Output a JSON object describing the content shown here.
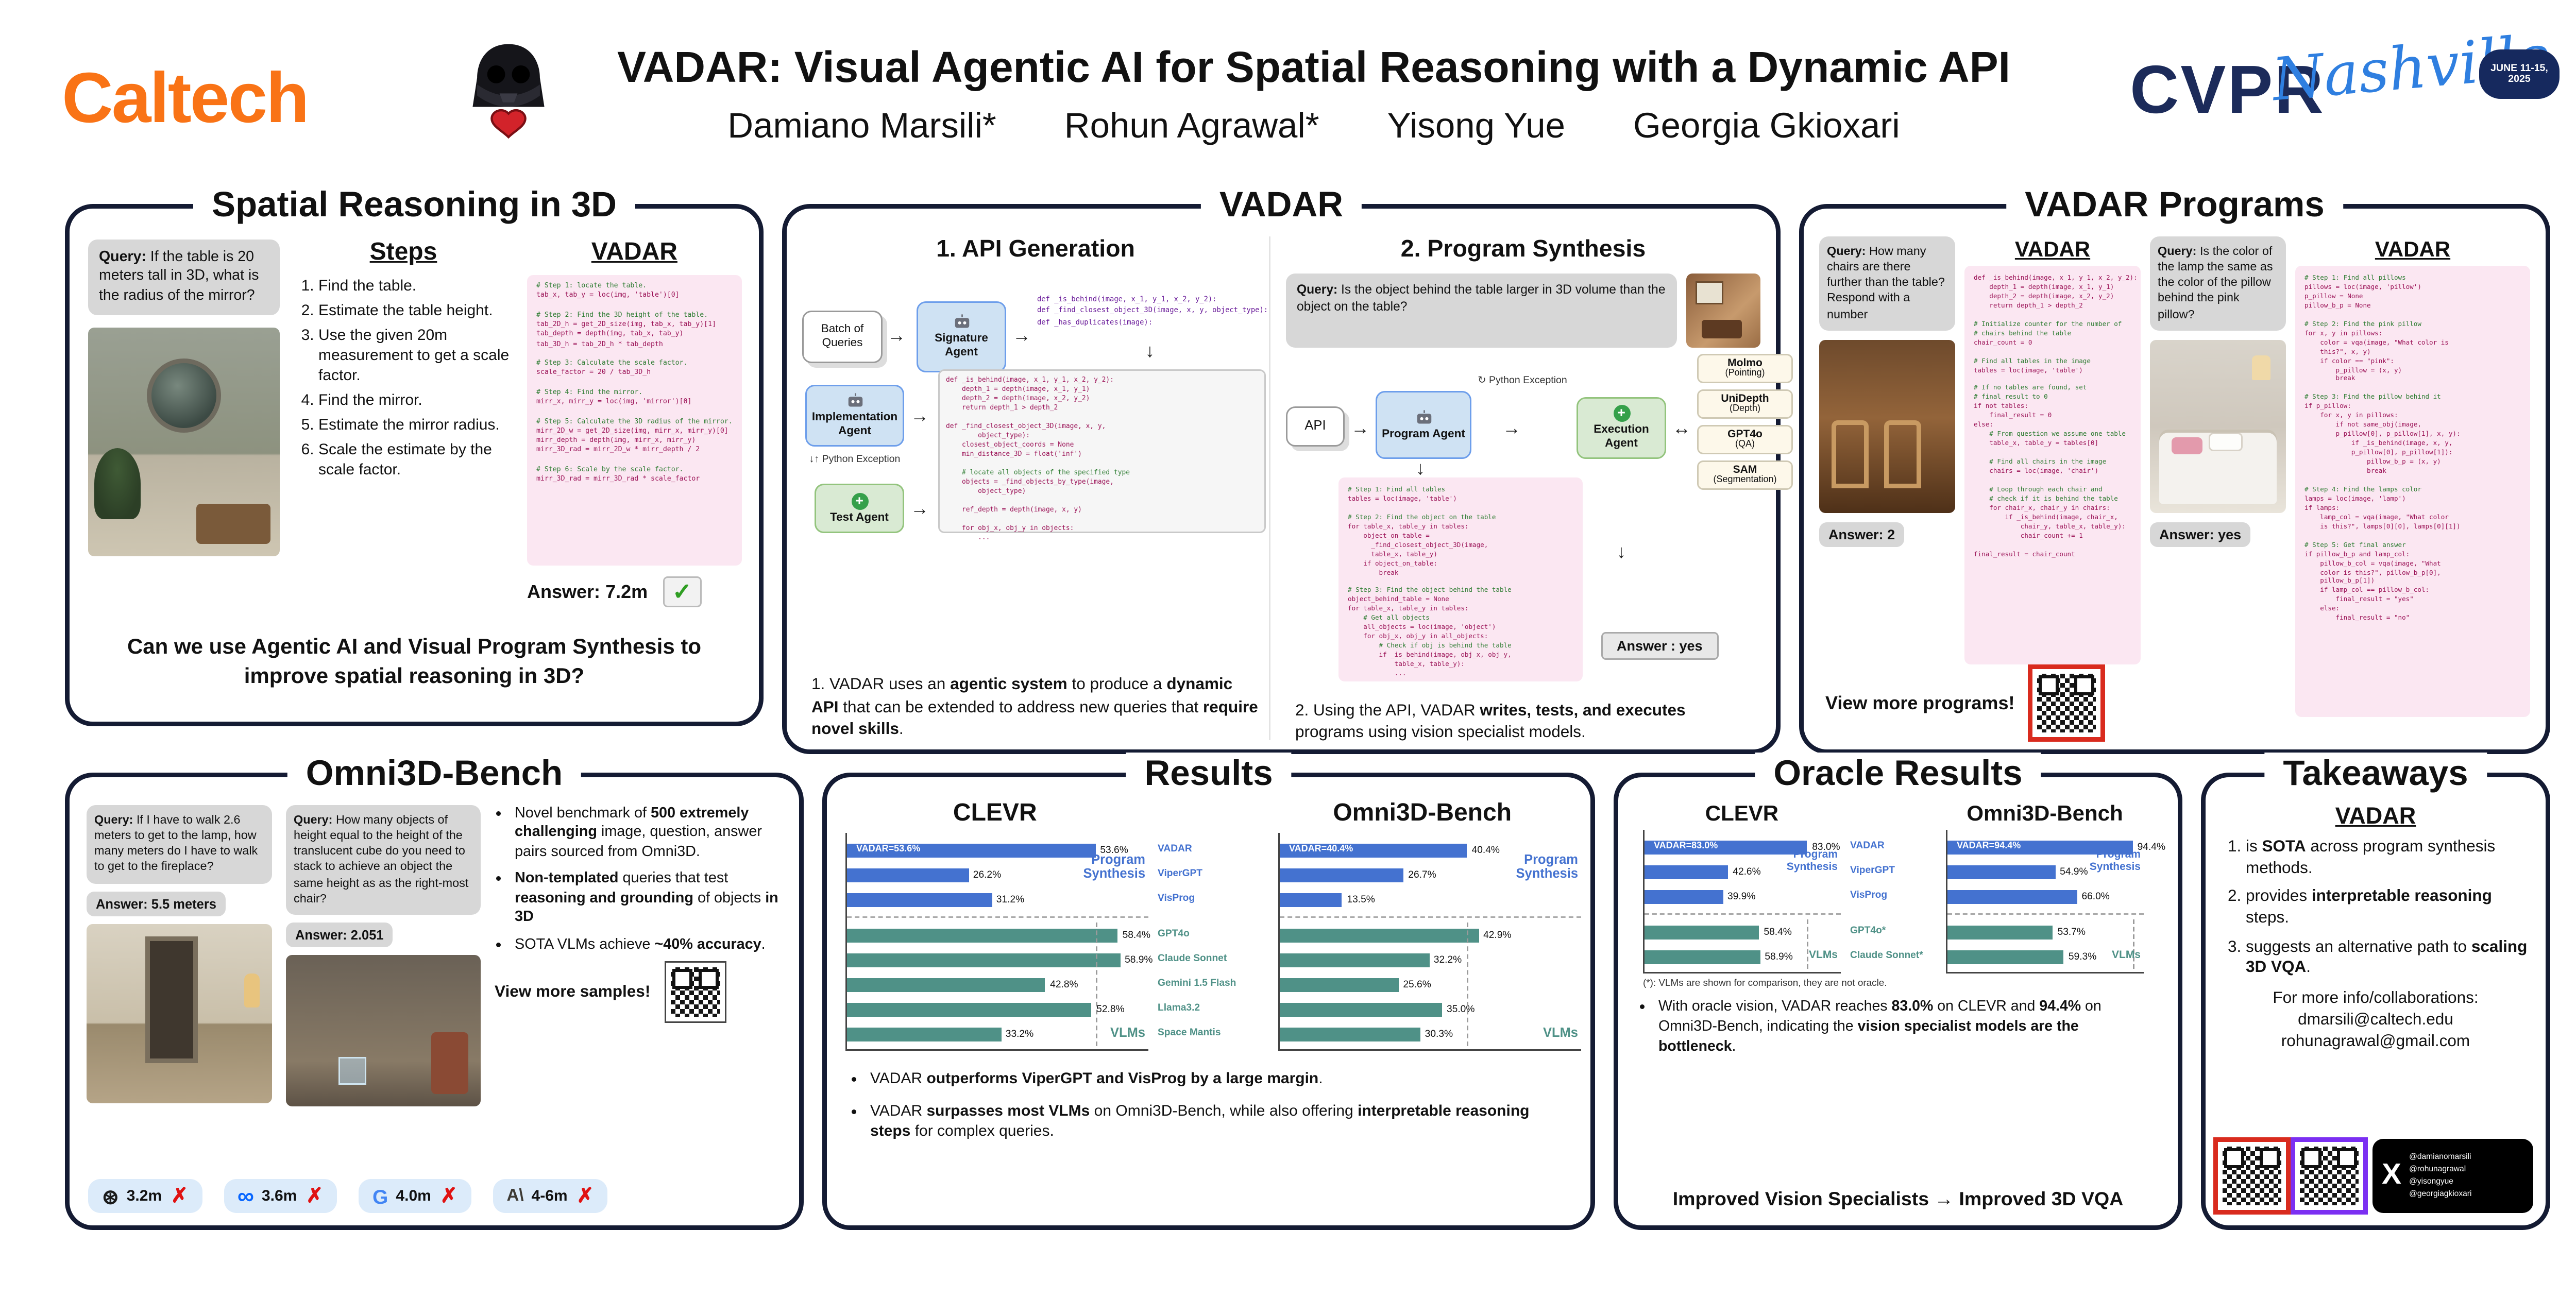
{
  "colors": {
    "caltech_orange": "#F97316",
    "cvpr_navy": "#1C2B5A",
    "cvpr_blue": "#2F7FE0",
    "program_synthesis_blue": "#4472D0",
    "vlm_teal": "#4F9187"
  },
  "icons": {
    "check": "✓",
    "cross": "✗",
    "arrow_right": "→",
    "arrow_down": "↓",
    "arrow_left_right": "↔",
    "arrow_up_down": "↓↑",
    "loop": "↻",
    "plus": "+",
    "x_logo": "X"
  },
  "header": {
    "logo": "Caltech",
    "title": "VADAR: Visual Agentic AI for Spatial Reasoning with a Dynamic API",
    "authors": [
      "Damiano Marsili*",
      "Rohun Agrawal*",
      "Yisong Yue",
      "Georgia Gkioxari"
    ],
    "conference": {
      "name": "CVPR",
      "city": "Nashville",
      "dates": "JUNE 11-15, 2025"
    }
  },
  "panel_spatial": {
    "title": "Spatial Reasoning in 3D",
    "query_label": "Query:",
    "query_text": "If the table is 20 meters tall in 3D, what is the radius of the mirror?",
    "steps_title": "Steps",
    "steps": [
      "Find the table.",
      "Estimate the table height.",
      "Use the given 20m measurement to get a scale factor.",
      "Find the mirror.",
      "Estimate the mirror radius.",
      "Scale the estimate by the scale factor."
    ],
    "vadar_title": "VADAR",
    "code": "# Step 1: locate the table.\ntab_x, tab_y = loc(img, 'table')[0]\n\n# Step 2: Find the 3D height of the table.\ntab_2D_h = get_2D_size(img, tab_x, tab_y)[1]\ntab_depth = depth(img, tab_x, tab_y)\ntab_3D_h = tab_2D_h * tab_depth\n\n# Step 3: Calculate the scale factor.\nscale_factor = 20 / tab_3D_h\n\n# Step 4: Find the mirror.\nmirr_x, mirr_y = loc(img, 'mirror')[0]\n\n# Step 5: Calculate the 3D radius of the mirror.\nmirr_2D_w = get_2D_size(img, mirr_x, mirr_y)[0]\nmirr_depth = depth(img, mirr_x, mirr_y)\nmirr_3D_rad = mirr_2D_w * mirr_depth / 2\n\n# Step 6: Scale by the scale factor.\nmirr_3D_rad = mirr_3D_rad * scale_factor",
    "answer_label": "Answer:",
    "answer": "7.2m",
    "question": "Can we use Agentic AI and Visual Program Synthesis to improve spatial reasoning in 3D?"
  },
  "panel_vadar": {
    "title": "VADAR",
    "api_generation": {
      "heading": "1. API Generation",
      "batch_label": "Batch of Queries",
      "signature_agent": "Signature Agent",
      "implementation_agent": "Implementation Agent",
      "test_agent": "Test Agent",
      "python_exception": "Python Exception",
      "signatures_code": "def _is_behind(image, x_1, y_1, x_2, y_2):\ndef _find_closest_object_3D(image, x, y, object_type):\ndef _has_duplicates(image):",
      "implementation_code": "def _is_behind(image, x_1, y_1, x_2, y_2):\n    depth_1 = depth(image, x_1, y_1)\n    depth_2 = depth(image, x_2, y_2)\n    return depth_1 > depth_2\n\ndef _find_closest_object_3D(image, x, y,\n        object_type):\n    closest_object_coords = None\n    min_distance_3D = float('inf')\n\n    # locate all objects of the specified type\n    objects = _find_objects_by_type(image,\n        object_type)\n\n    ref_depth = depth(image, x, y)\n\n    for obj_x, obj_y in objects:\n        ..."
    },
    "caption_1": [
      [
        "1. VADAR uses an ",
        0
      ],
      [
        "agentic system",
        1
      ],
      [
        " to produce a ",
        0
      ],
      [
        "dynamic API",
        1
      ],
      [
        " that can be extended to address new queries that ",
        0
      ],
      [
        "require novel skills",
        1
      ],
      [
        ".",
        0
      ]
    ],
    "program_synthesis": {
      "heading": "2. Program Synthesis",
      "query_label": "Query:",
      "query_text": "Is the object behind the table larger in 3D volume than the object on the table?",
      "api_label": "API",
      "program_agent": "Program Agent",
      "execution_agent": "Execution Agent",
      "python_exception": "Python Exception",
      "specialists": [
        {
          "name": "Molmo",
          "sub": "(Pointing)"
        },
        {
          "name": "UniDepth",
          "sub": "(Depth)"
        },
        {
          "name": "GPT4o",
          "sub": "(QA)"
        },
        {
          "name": "SAM",
          "sub": "(Segmentation)"
        }
      ],
      "program_code": "# Step 1: Find all tables\ntables = loc(image, 'table')\n\n# Step 2: Find the object on the table\nfor table_x, table_y in tables:\n    object_on_table =\n      _find_closest_object_3D(image,\n      table_x, table_y)\n    if object_on_table:\n        break\n\n# Step 3: Find the object behind the table\nobject_behind_table = None\nfor table_x, table_y in tables:\n    # Get all objects\n    all_objects = loc(image, 'object')\n    for obj_x, obj_y in all_objects:\n        # Check if obj is behind the table\n        if _is_behind(image, obj_x, obj_y,\n            table_x, table_y):\n            ...",
      "answer": "Answer : yes"
    },
    "caption_2": [
      [
        "2. Using the API, VADAR ",
        0
      ],
      [
        "writes, tests, and executes",
        1
      ],
      [
        " programs using vision specialist models.",
        0
      ]
    ]
  },
  "panel_programs": {
    "title": "VADAR Programs",
    "example_1": {
      "query_label": "Query:",
      "query_text": "How many chairs are there further than the table? Respond with a number",
      "answer_label": "Answer:",
      "answer": "2",
      "vadar_label": "VADAR",
      "code": "def _is_behind(image, x_1, y_1, x_2, y_2):\n    depth_1 = depth(image, x_1, y_1)\n    depth_2 = depth(image, x_2, y_2)\n    return depth_1 > depth_2\n\n# Initialize counter for the number of\n# chairs behind the table\nchair_count = 0\n\n# Find all tables in the image\ntables = loc(image, 'table')\n\n# If no tables are found, set\n# final_result to 0\nif not tables:\n    final_result = 0\nelse:\n    # From question we assume one table\n    table_x, table_y = tables[0]\n\n    # Find all chairs in the image\n    chairs = loc(image, 'chair')\n\n    # Loop through each chair and\n    # check if it is behind the table\n    for chair_x, chair_y in chairs:\n        if _is_behind(image, chair_x,\n            chair_y, table_x, table_y):\n            chair_count += 1\n\nfinal_result = chair_count"
    },
    "example_2": {
      "query_label": "Query:",
      "query_text": "Is the color of the lamp the same as the color of the pillow behind the pink pillow?",
      "answer_label": "Answer:",
      "answer": "yes",
      "vadar_label": "VADAR",
      "code": "# Step 1: Find all pillows\npillows = loc(image, 'pillow')\np_pillow = None\npillow_b_p = None\n\n# Step 2: Find the pink pillow\nfor x, y in pillows:\n    color = vqa(image, \"What color is\n    this?\", x, y)\n    if color == \"pink\":\n        p_pillow = (x, y)\n        break\n\n# Step 3: Find the pillow behind it\nif p_pillow:\n    for x, y in pillows:\n        if not same_obj(image,\n        p_pillow[0], p_pillow[1], x, y):\n            if _is_behind(image, x, y,\n            p_pillow[0], p_pillow[1]):\n                pillow_b_p = (x, y)\n                break\n\n# Step 4: Find the lamps color\nlamps = loc(image, 'lamp')\nif lamps:\n    lamp_col = vqa(image, \"What color\n    is this?\", lamps[0][0], lamps[0][1])\n\n# Step 5: Get final answer\nif pillow_b_p and lamp_col:\n    pillow_b_col = vqa(image, \"What\n    color is this?\", pillow_b_p[0],\n    pillow_b_p[1])\n    if lamp_col == pillow_b_col:\n        final_result = \"yes\"\n    else:\n        final_result = \"no\""
    },
    "view_more": "View more programs!"
  },
  "panel_omni": {
    "title": "Omni3D-Bench",
    "example_1": {
      "query_label": "Query:",
      "query_text": "If I have to walk 2.6 meters to get to the lamp, how many meters do I have to walk to get to the fireplace?",
      "answer_label": "Answer:",
      "answer": "5.5 meters"
    },
    "example_2": {
      "query_label": "Query:",
      "query_text": "How many objects of height equal to the height of the translucent cube do you need to stack to achieve an object the same height as as the right-most chair?",
      "answer_label": "Answer:",
      "answer": "2.051"
    },
    "bullets": [
      [
        [
          "Novel benchmark of ",
          0
        ],
        [
          "500 extremely challenging",
          1
        ],
        [
          " image, question, answer pairs sourced from Omni3D.",
          0
        ]
      ],
      [
        [
          "Non-templated",
          1
        ],
        [
          " queries that test ",
          0
        ],
        [
          "reasoning and grounding",
          1
        ],
        [
          " of objects ",
          0
        ],
        [
          "in 3D",
          1
        ]
      ],
      [
        [
          "SOTA VLMs achieve ",
          0
        ],
        [
          "~40% accuracy",
          1
        ],
        [
          ".",
          0
        ]
      ]
    ],
    "view_more": "View more samples!",
    "model_estimates": [
      {
        "model": "OpenAI",
        "logo": "⊛",
        "value": "3.2m"
      },
      {
        "model": "Meta",
        "logo": "∞",
        "value": "3.6m"
      },
      {
        "model": "Google",
        "logo": "G",
        "value": "4.0m"
      },
      {
        "model": "Anthropic",
        "logo": "A\\",
        "value": "4-6m"
      }
    ]
  },
  "panel_results": {
    "title": "Results",
    "bullets": [
      [
        [
          "VADAR ",
          0
        ],
        [
          "outperforms ViperGPT and VisProg by a large margin",
          1
        ],
        [
          ".",
          0
        ]
      ],
      [
        [
          "VADAR ",
          0
        ],
        [
          "surpasses most VLMs",
          1
        ],
        [
          " on Omni3D-Bench, while also offering ",
          0
        ],
        [
          "interpretable reasoning steps",
          1
        ],
        [
          " for complex queries.",
          0
        ]
      ]
    ]
  },
  "panel_oracle": {
    "title": "Oracle Results",
    "footnote": "(*): VLMs are shown for comparison, they are not oracle.",
    "bullet": [
      [
        [
          "With oracle vision, VADAR reaches ",
          0
        ],
        [
          "83.0%",
          1
        ],
        [
          " on CLEVR and ",
          0
        ],
        [
          "94.4%",
          1
        ],
        [
          " on Omni3D-Bench, indicating the ",
          0
        ],
        [
          "vision specialist models are the bottleneck",
          1
        ],
        [
          ".",
          0
        ]
      ]
    ],
    "conclusion": "Improved Vision Specialists → Improved 3D VQA"
  },
  "panel_takeaways": {
    "title": "Takeaways",
    "brand": "VADAR",
    "items": [
      [
        [
          "is ",
          0
        ],
        [
          "SOTA",
          1
        ],
        [
          " across program synthesis methods.",
          0
        ]
      ],
      [
        [
          "provides ",
          0
        ],
        [
          "interpretable reasoning",
          1
        ],
        [
          " steps.",
          0
        ]
      ],
      [
        [
          "suggests an alternative path to ",
          0
        ],
        [
          "scaling 3D VQA",
          1
        ],
        [
          ".",
          0
        ]
      ]
    ],
    "contact_heading": "For more info/collaborations:",
    "emails": [
      "dmarsili@caltech.edu",
      "rohunagrawal@gmail.com"
    ],
    "handles": [
      "@damianomarsili",
      "@rohunagrawal",
      "@yisongyue",
      "@georgiagkioxari"
    ]
  },
  "chart_data": [
    {
      "id": "results-clevr",
      "type": "bar",
      "orientation": "horizontal",
      "title": "CLEVR",
      "categories": [
        "VADAR",
        "ViperGPT",
        "VisProg",
        "GPT4o",
        "Claude Sonnet",
        "Gemini 1.5 Flash",
        "Llama3.2",
        "Space Mantis"
      ],
      "values": [
        53.6,
        26.2,
        31.2,
        58.4,
        58.9,
        42.8,
        52.8,
        33.2
      ],
      "inside_labels": [
        "VADAR=53.6%",
        "",
        "",
        "",
        "",
        "",
        "",
        ""
      ],
      "group_of": [
        0,
        0,
        0,
        1,
        1,
        1,
        1,
        1
      ],
      "group_labels": [
        "Program Synthesis",
        "VLMs"
      ],
      "group_colors": [
        "#4472D0",
        "#4F9187"
      ],
      "guideline": 53.6,
      "xlim": [
        0,
        65
      ],
      "grid": false,
      "value_suffix": "%"
    },
    {
      "id": "results-omni",
      "type": "bar",
      "orientation": "horizontal",
      "title": "Omni3D-Bench",
      "categories": [
        "VADAR",
        "ViperGPT",
        "VisProg",
        "GPT4o",
        "Claude Sonnet",
        "Gemini 1.5 Flash",
        "Llama3.2",
        "Space Mantis"
      ],
      "values": [
        40.4,
        26.7,
        13.5,
        42.9,
        32.2,
        25.6,
        35.0,
        30.3
      ],
      "inside_labels": [
        "VADAR=40.4%",
        "",
        "",
        "",
        "",
        "",
        "",
        ""
      ],
      "group_of": [
        0,
        0,
        0,
        1,
        1,
        1,
        1,
        1
      ],
      "group_labels": [
        "Program Synthesis",
        "VLMs"
      ],
      "group_colors": [
        "#4472D0",
        "#4F9187"
      ],
      "guideline": 40.4,
      "xlim": [
        0,
        65
      ],
      "grid": false,
      "value_suffix": "%"
    },
    {
      "id": "oracle-clevr",
      "type": "bar",
      "orientation": "horizontal",
      "title": "CLEVR",
      "categories": [
        "VADAR",
        "ViperGPT",
        "VisProg",
        "GPT4o*",
        "Claude Sonnet*"
      ],
      "values": [
        83.0,
        42.6,
        39.9,
        58.4,
        58.9
      ],
      "inside_labels": [
        "VADAR=83.0%",
        "",
        "",
        "",
        ""
      ],
      "group_of": [
        0,
        0,
        0,
        1,
        1
      ],
      "group_labels": [
        "Program Synthesis",
        "VLMs"
      ],
      "group_colors": [
        "#4472D0",
        "#4F9187"
      ],
      "guideline": 83.0,
      "xlim": [
        0,
        100
      ],
      "grid": false,
      "value_suffix": "%"
    },
    {
      "id": "oracle-omni",
      "type": "bar",
      "orientation": "horizontal",
      "title": "Omni3D-Bench",
      "categories": [
        "VADAR",
        "ViperGPT",
        "VisProg",
        "GPT4o*",
        "Claude Sonnet*"
      ],
      "values": [
        94.4,
        54.9,
        66.0,
        53.7,
        59.3
      ],
      "inside_labels": [
        "VADAR=94.4%",
        "",
        "",
        "",
        ""
      ],
      "group_of": [
        0,
        0,
        0,
        1,
        1
      ],
      "group_labels": [
        "Program Synthesis",
        "VLMs"
      ],
      "group_colors": [
        "#4472D0",
        "#4F9187"
      ],
      "guideline": 94.4,
      "xlim": [
        0,
        100
      ],
      "grid": false,
      "value_suffix": "%"
    }
  ]
}
